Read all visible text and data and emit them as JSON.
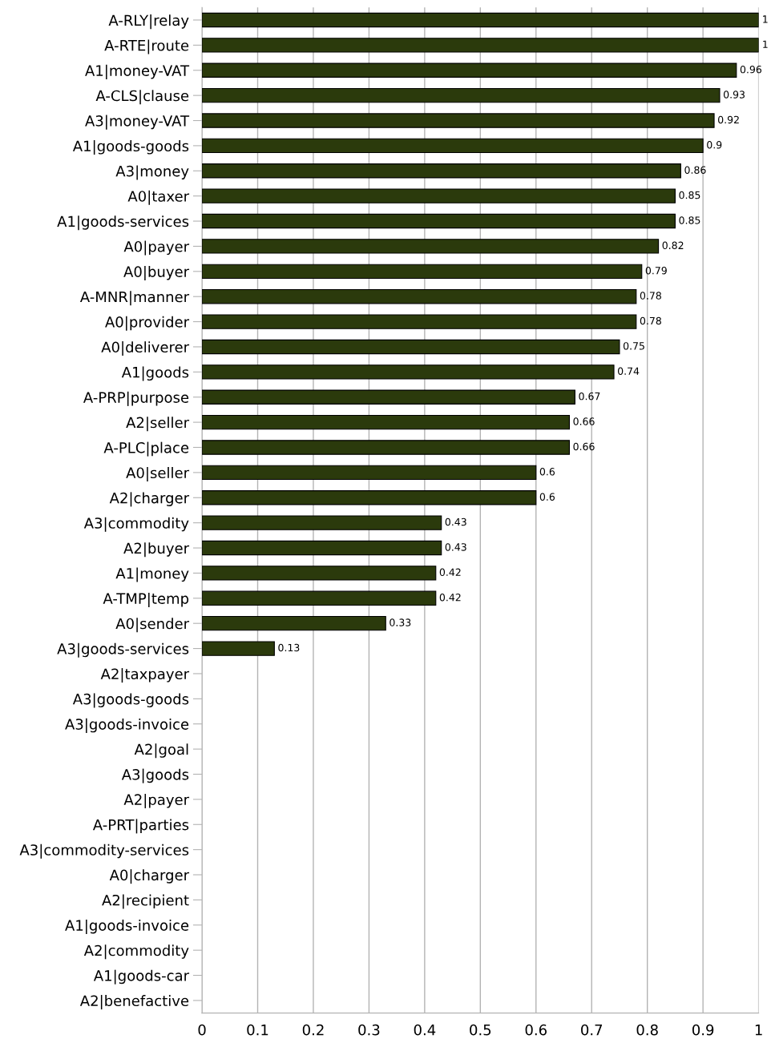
{
  "chart_data": {
    "type": "bar",
    "orientation": "horizontal",
    "categories": [
      "A-RLY|relay",
      "A-RTE|route",
      "A1|money-VAT",
      "A-CLS|clause",
      "A3|money-VAT",
      "A1|goods-goods",
      "A3|money",
      "A0|taxer",
      "A1|goods-services",
      "A0|payer",
      "A0|buyer",
      "A-MNR|manner",
      "A0|provider",
      "A0|deliverer",
      "A1|goods",
      "A-PRP|purpose",
      "A2|seller",
      "A-PLC|place",
      "A0|seller",
      "A2|charger",
      "A3|commodity",
      "A2|buyer",
      "A1|money",
      "A-TMP|temp",
      "A0|sender",
      "A3|goods-services",
      "A2|taxpayer",
      "A3|goods-goods",
      "A3|goods-invoice",
      "A2|goal",
      "A3|goods",
      "A2|payer",
      "A-PRT|parties",
      "A3|commodity-services",
      "A0|charger",
      "A2|recipient",
      "A1|goods-invoice",
      "A2|commodity",
      "A1|goods-car",
      "A2|benefactive"
    ],
    "values": [
      1,
      1,
      0.96,
      0.93,
      0.92,
      0.9,
      0.86,
      0.85,
      0.85,
      0.82,
      0.79,
      0.78,
      0.78,
      0.75,
      0.74,
      0.67,
      0.66,
      0.66,
      0.6,
      0.6,
      0.43,
      0.43,
      0.42,
      0.42,
      0.33,
      0.13,
      null,
      null,
      null,
      null,
      null,
      null,
      null,
      null,
      null,
      null,
      null,
      null,
      null,
      null
    ],
    "value_labels": [
      "1",
      "1",
      "0.96",
      "0.93",
      "0.92",
      "0.9",
      "0.86",
      "0.85",
      "0.85",
      "0.82",
      "0.79",
      "0.78",
      "0.78",
      "0.75",
      "0.74",
      "0.67",
      "0.66",
      "0.66",
      "0.6",
      "0.6",
      "0.43",
      "0.43",
      "0.42",
      "0.42",
      "0.33",
      "0.13",
      null,
      null,
      null,
      null,
      null,
      null,
      null,
      null,
      null,
      null,
      null,
      null,
      null,
      null
    ],
    "color": "#2b3a0c",
    "xlim": [
      0,
      1
    ],
    "xticks": [
      0,
      0.1,
      0.2,
      0.3,
      0.4,
      0.5,
      0.6,
      0.7,
      0.8,
      0.9,
      1
    ],
    "grid": "x",
    "legend": false
  }
}
